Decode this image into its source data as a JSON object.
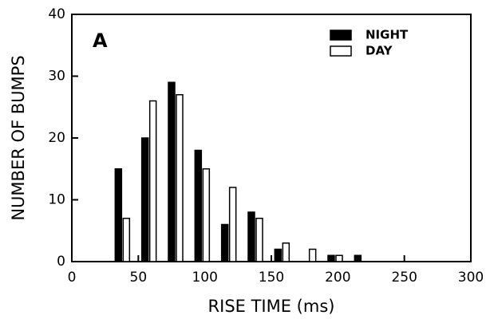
{
  "chart_data": {
    "type": "bar",
    "panel_label": "A",
    "x_label": "RISE TIME (ms)",
    "y_label": "NUMBER OF BUMPS",
    "series": [
      {
        "name": "NIGHT",
        "color": "#000000",
        "x": [
          35,
          55,
          75,
          95,
          115,
          135,
          155,
          195,
          215
        ],
        "values": [
          15,
          20,
          29,
          18,
          6,
          8,
          2,
          1,
          1
        ]
      },
      {
        "name": "DAY",
        "color": "#ffffff",
        "x": [
          41,
          61,
          81,
          101,
          121,
          141,
          161,
          181,
          201
        ],
        "values": [
          7,
          26,
          27,
          15,
          12,
          7,
          3,
          2,
          1
        ]
      }
    ],
    "xlim": [
      0,
      300
    ],
    "xticks": [
      0,
      50,
      100,
      150,
      200,
      250,
      300
    ],
    "ylim": [
      0,
      40
    ],
    "yticks": [
      0,
      10,
      20,
      30,
      40
    ],
    "legend": "upper-right",
    "grid": false
  }
}
